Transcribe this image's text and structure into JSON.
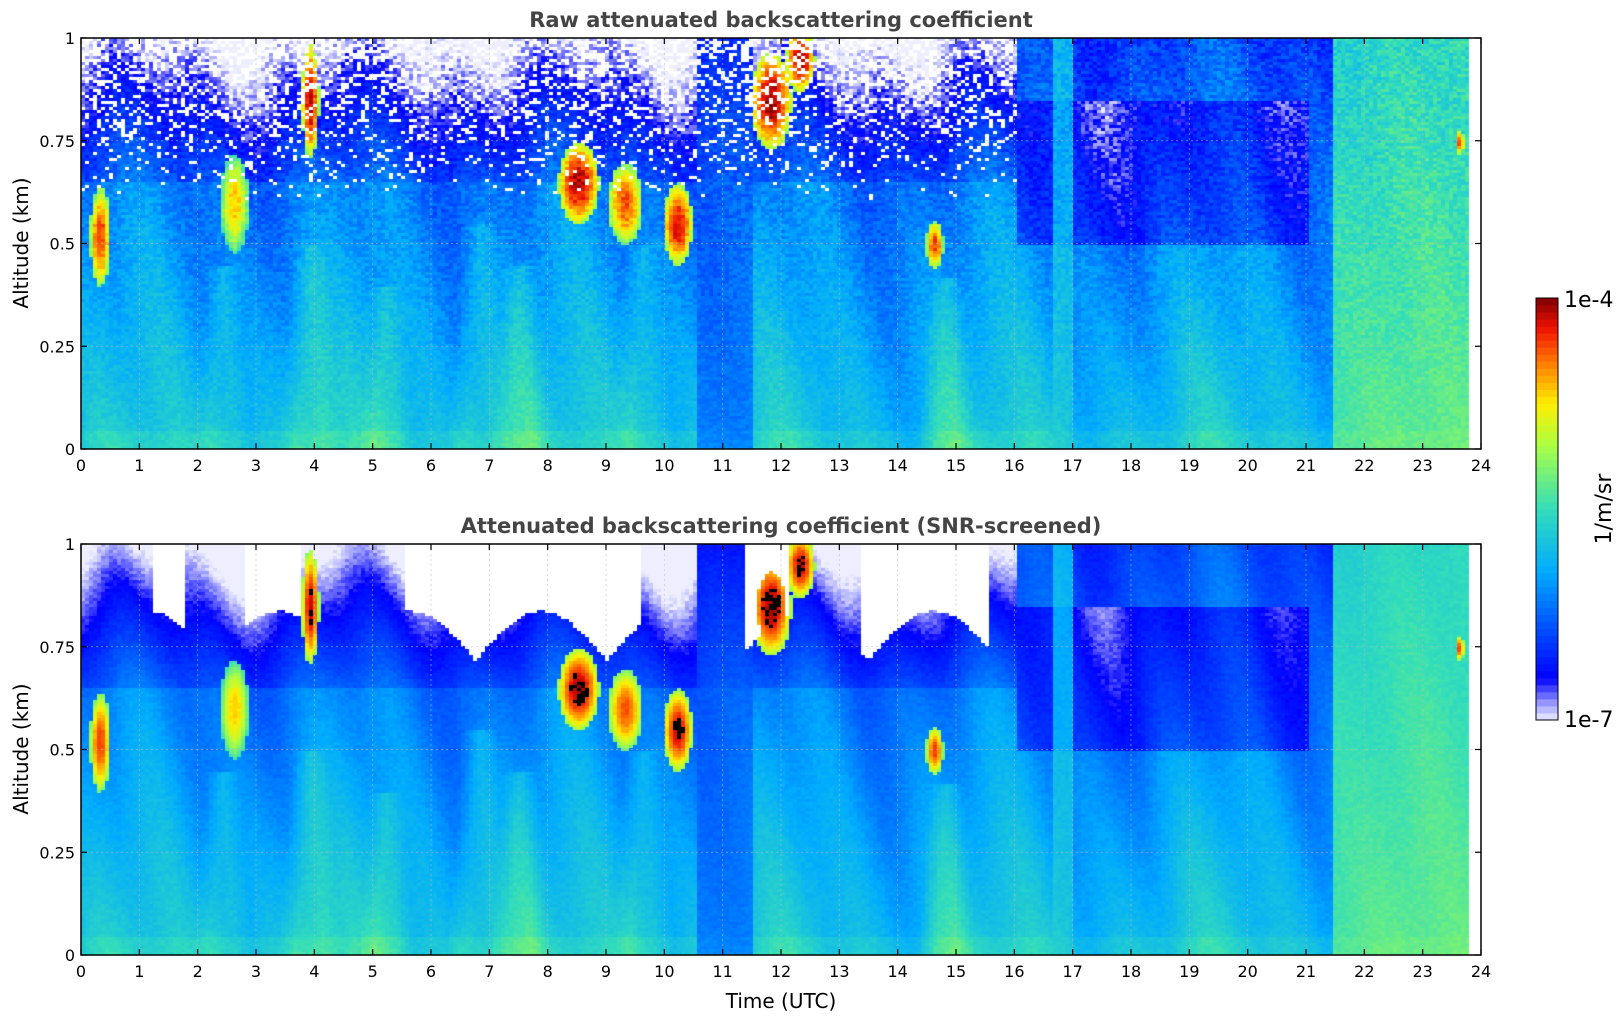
{
  "chart_data": [
    {
      "type": "heatmap",
      "title": "Raw attenuated backscattering coefficient",
      "xlabel": "",
      "ylabel": "Altitude (km)",
      "xlim": [
        0,
        24
      ],
      "ylim": [
        0,
        1
      ],
      "x_ticks": [
        "0",
        "1",
        "2",
        "3",
        "4",
        "5",
        "6",
        "7",
        "8",
        "9",
        "10",
        "11",
        "12",
        "13",
        "14",
        "15",
        "16",
        "17",
        "18",
        "19",
        "20",
        "21",
        "22",
        "23",
        "24"
      ],
      "y_ticks": [
        "0",
        "0.25",
        "0.5",
        "0.75",
        "1"
      ],
      "grid": true,
      "screened": false
    },
    {
      "type": "heatmap",
      "title": "Attenuated backscattering coefficient (SNR-screened)",
      "xlabel": "Time (UTC)",
      "ylabel": "Altitude (km)",
      "xlim": [
        0,
        24
      ],
      "ylim": [
        0,
        1
      ],
      "x_ticks": [
        "0",
        "1",
        "2",
        "3",
        "4",
        "5",
        "6",
        "7",
        "8",
        "9",
        "10",
        "11",
        "12",
        "13",
        "14",
        "15",
        "16",
        "17",
        "18",
        "19",
        "20",
        "21",
        "22",
        "23",
        "24"
      ],
      "y_ticks": [
        "0",
        "0.25",
        "0.5",
        "0.75",
        "1"
      ],
      "grid": true,
      "screened": true
    }
  ],
  "colorbar": {
    "label": "1/m/sr",
    "max_label": "1e-4",
    "min_label": "1e-7",
    "scale": "log",
    "range": [
      1e-07,
      0.0001
    ],
    "colormap": "jet",
    "placement": "right"
  },
  "features": {
    "clouds": [
      {
        "t": 0.3,
        "alt": 0.52,
        "w": 0.18,
        "h": 0.12,
        "v": 0.9
      },
      {
        "t": 2.6,
        "alt": 0.6,
        "w": 0.25,
        "h": 0.12,
        "v": 0.78
      },
      {
        "t": 3.9,
        "alt": 0.85,
        "w": 0.15,
        "h": 0.14,
        "v": 0.95
      },
      {
        "t": 8.5,
        "alt": 0.65,
        "w": 0.35,
        "h": 0.1,
        "v": 0.97
      },
      {
        "t": 9.3,
        "alt": 0.6,
        "w": 0.3,
        "h": 0.1,
        "v": 0.88
      },
      {
        "t": 10.2,
        "alt": 0.55,
        "w": 0.25,
        "h": 0.1,
        "v": 0.95
      },
      {
        "t": 11.8,
        "alt": 0.85,
        "w": 0.35,
        "h": 0.12,
        "v": 0.97
      },
      {
        "t": 12.3,
        "alt": 0.95,
        "w": 0.25,
        "h": 0.08,
        "v": 0.95
      },
      {
        "t": 14.6,
        "alt": 0.5,
        "w": 0.15,
        "h": 0.06,
        "v": 0.9
      },
      {
        "t": 23.6,
        "alt": 0.75,
        "w": 0.08,
        "h": 0.03,
        "v": 0.9
      }
    ],
    "bands": [
      {
        "t0": 21.4,
        "t1": 23.8,
        "v": 0.62
      },
      {
        "t0": 16.6,
        "t1": 16.95,
        "v": 0.46
      },
      {
        "t0": 10.5,
        "t1": 11.5,
        "v": 0.22
      }
    ]
  },
  "colors": {
    "title": "#444444",
    "frame": "#000000",
    "grid": "#bbbbbb",
    "background": "#ffffff"
  }
}
